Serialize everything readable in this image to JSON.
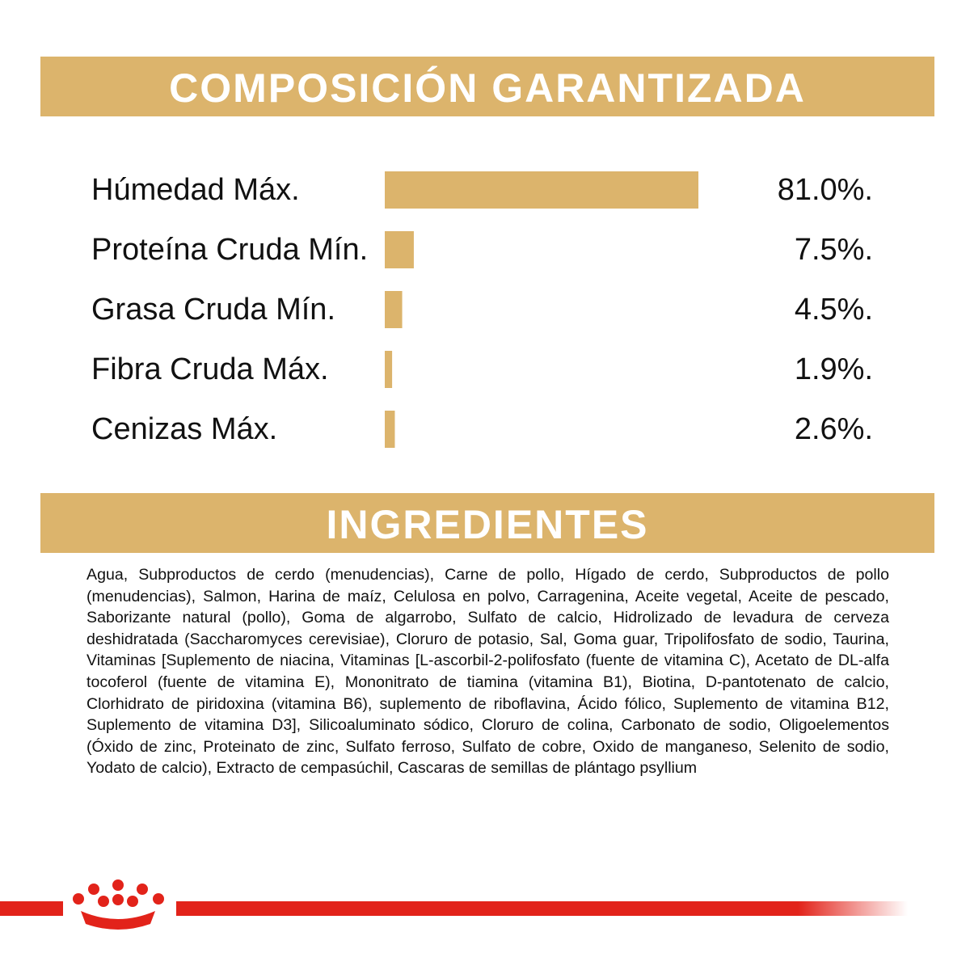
{
  "chart_data": {
    "type": "bar",
    "title": "COMPOSICIÓN GARANTIZADA",
    "categories": [
      "Húmedad Máx.",
      "Proteína Cruda Mín.",
      "Grasa Cruda Mín.",
      "Fibra Cruda Máx.",
      "Cenizas Máx."
    ],
    "values": [
      81.0,
      7.5,
      4.5,
      1.9,
      2.6
    ],
    "value_labels": [
      "81.0%.",
      "7.5%.",
      "4.5%.",
      "1.9%.",
      "2.6%."
    ],
    "color": "#dcb46c"
  },
  "ingredients": {
    "title": "INGREDIENTES",
    "text": "Agua, Subproductos de cerdo (menudencias), Carne de pollo, Hígado de cerdo, Subproductos de pollo (menudencias), Salmon, Harina de maíz, Celulosa en polvo, Carragenina, Aceite vegetal, Aceite de pescado, Saborizante natural (pollo), Goma de algarrobo, Sulfato de calcio, Hidrolizado de levadura de cerveza deshidratada (Saccharomyces cerevisiae), Cloruro de potasio, Sal, Goma guar, Tripolifosfato de sodio, Taurina, Vitaminas [Suplemento de niacina, Vitaminas [L-ascorbil-2-polifosfato (fuente de vitamina C), Acetato de DL-alfa tocoferol (fuente de vitamina E), Mononitrato de tiamina (vitamina B1), Biotina, D-pantotenato de calcio, Clorhidrato de piridoxina (vitamina B6), suplemento de riboflavina, Ácido fólico, Suplemento de vitamina B12, Suplemento de vitamina D3], Silicoaluminato sódico, Cloruro de colina, Carbonato de sodio, Oligoelementos (Óxido de zinc, Proteinato de zinc, Sulfato ferroso, Sulfato de cobre, Oxido de manganeso, Selenito de sodio, Yodato de calcio), Extracto de cempasúchil, Cascaras de semillas de plántago psyllium"
  }
}
